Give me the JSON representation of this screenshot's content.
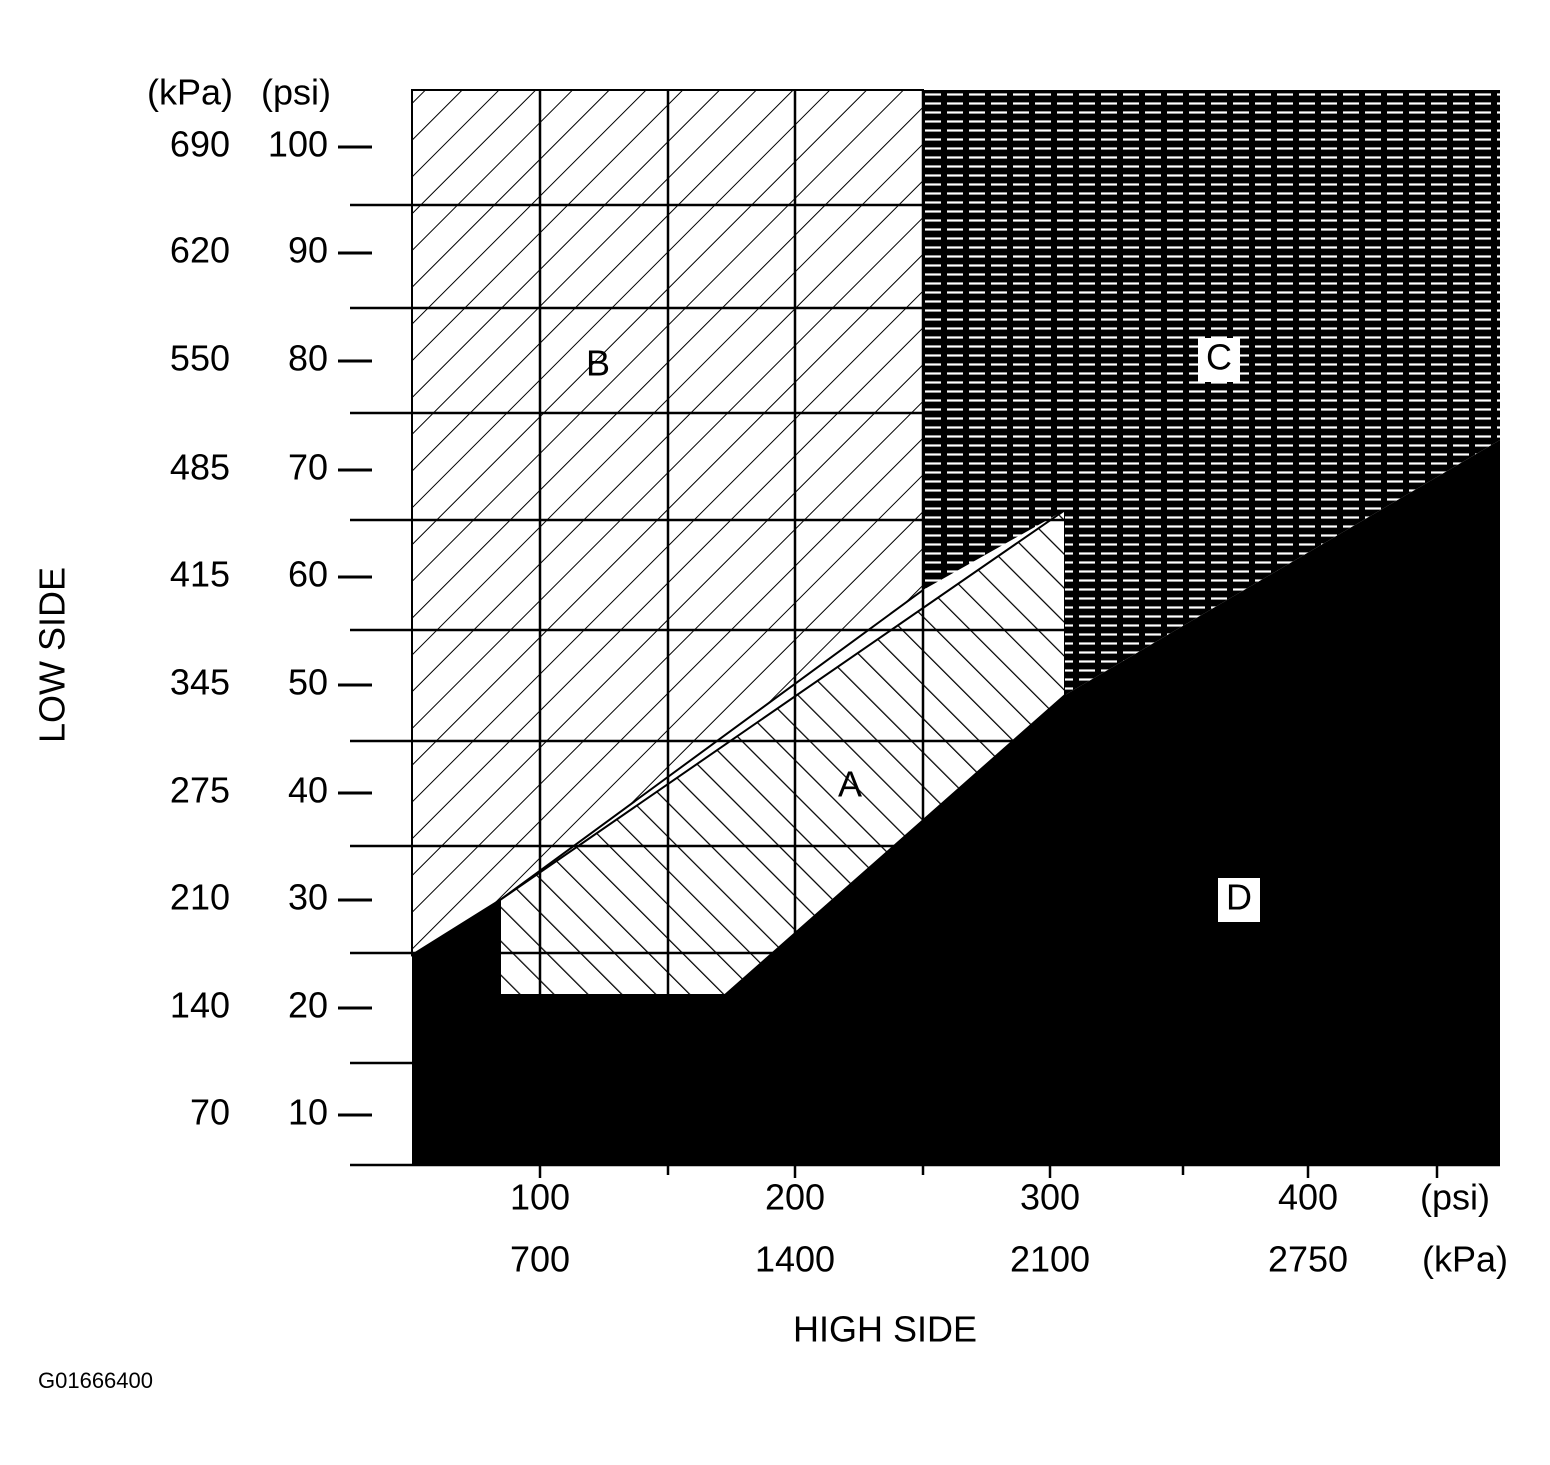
{
  "left_axis": {
    "kpa_unit": "(kPa)",
    "psi_unit": "(psi)",
    "kpa_ticks": [
      690,
      620,
      550,
      485,
      415,
      345,
      275,
      210,
      140,
      70
    ],
    "psi_ticks": [
      100,
      90,
      80,
      70,
      60,
      50,
      40,
      30,
      20,
      10
    ],
    "title": "LOW SIDE"
  },
  "bottom_axis": {
    "psi_ticks": [
      100,
      200,
      300,
      400
    ],
    "psi_unit": "(psi)",
    "kpa_ticks": [
      700,
      1400,
      2100,
      2750
    ],
    "kpa_unit": "(kPa)",
    "title": "HIGH SIDE"
  },
  "regions": {
    "a": "A",
    "b": "B",
    "c": "C",
    "d": "D"
  },
  "figure_id": "G01666400"
}
